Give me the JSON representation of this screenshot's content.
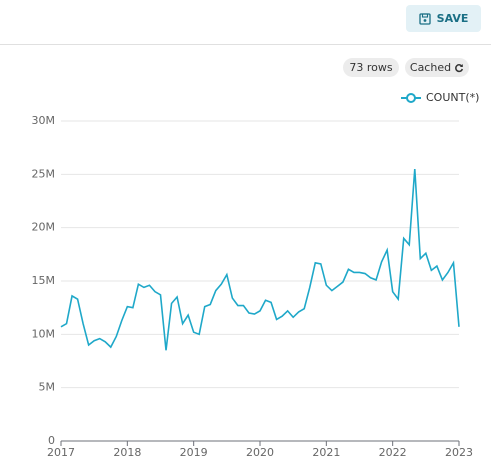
{
  "header": {
    "save": "SAVE"
  },
  "status": {
    "rows": "73 rows",
    "cached": "Cached"
  },
  "chart_data": {
    "type": "line",
    "categories": [
      "2017",
      null,
      null,
      null,
      null,
      null,
      null,
      null,
      null,
      null,
      null,
      null,
      "2018",
      null,
      null,
      null,
      null,
      null,
      null,
      null,
      null,
      null,
      null,
      null,
      "2019",
      null,
      null,
      null,
      null,
      null,
      null,
      null,
      null,
      null,
      null,
      null,
      "2020",
      null,
      null,
      null,
      null,
      null,
      null,
      null,
      null,
      null,
      null,
      null,
      "2021",
      null,
      null,
      null,
      null,
      null,
      null,
      null,
      null,
      null,
      null,
      null,
      "2022",
      null,
      null,
      null,
      null,
      null,
      null,
      null,
      null,
      null,
      null,
      null,
      "2023"
    ],
    "series": [
      {
        "name": "COUNT(*)",
        "color": "#1fa8c9",
        "values": [
          10.7,
          11.0,
          13.6,
          13.3,
          11.0,
          9.0,
          9.4,
          9.6,
          9.3,
          8.8,
          9.8,
          11.3,
          12.6,
          12.5,
          14.7,
          14.4,
          14.6,
          14.0,
          13.7,
          8.5,
          12.9,
          13.5,
          11.0,
          11.8,
          10.2,
          10.0,
          12.6,
          12.8,
          14.1,
          14.7,
          15.6,
          13.4,
          12.7,
          12.7,
          12.0,
          11.9,
          12.2,
          13.2,
          13.0,
          11.4,
          11.7,
          12.2,
          11.6,
          12.1,
          12.4,
          14.4,
          16.7,
          16.6,
          14.6,
          14.1,
          14.5,
          14.9,
          16.1,
          15.8,
          15.8,
          15.7,
          15.3,
          15.1,
          16.8,
          17.9,
          14.0,
          13.3,
          19.0,
          18.4,
          25.5,
          17.1,
          17.6,
          16.0,
          16.4,
          15.1,
          15.8,
          16.7,
          10.7
        ]
      }
    ],
    "ylim": [
      0,
      30
    ],
    "yticks": [
      0,
      {
        "value": 5,
        "label": "5M"
      },
      {
        "value": 10,
        "label": "10M"
      },
      {
        "value": 15,
        "label": "15M"
      },
      {
        "value": 20,
        "label": "20M"
      },
      {
        "value": 25,
        "label": "25M"
      },
      {
        "value": 30,
        "label": "30M"
      }
    ],
    "grid": true,
    "legend": "top-right"
  }
}
